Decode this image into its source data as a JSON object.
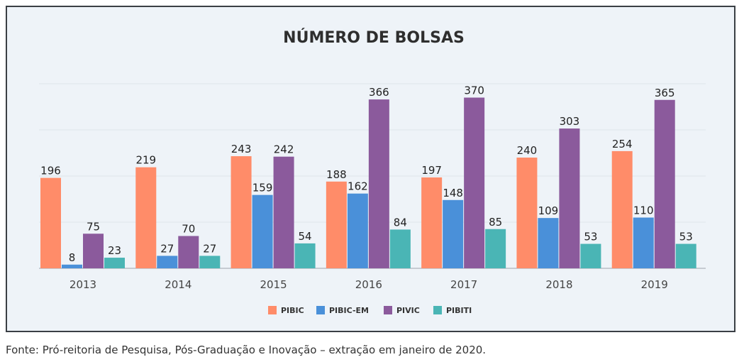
{
  "chart_data": {
    "type": "bar",
    "title": "NÚMERO DE BOLSAS",
    "categories": [
      "2013",
      "2014",
      "2015",
      "2016",
      "2017",
      "2018",
      "2019"
    ],
    "series": [
      {
        "name": "PIBIC",
        "color": "#ff8c69",
        "values": [
          196,
          219,
          243,
          188,
          197,
          240,
          254
        ]
      },
      {
        "name": "PIBIC-EM",
        "color": "#4a90d9",
        "values": [
          8,
          27,
          159,
          162,
          148,
          109,
          110
        ]
      },
      {
        "name": "PIVIC",
        "color": "#8b5a9c",
        "values": [
          75,
          70,
          242,
          366,
          370,
          303,
          365
        ]
      },
      {
        "name": "PIBITI",
        "color": "#4ab5b5",
        "values": [
          23,
          27,
          54,
          84,
          85,
          53,
          53
        ]
      }
    ],
    "ylim": [
      0,
      400
    ],
    "grid": true,
    "legend": "bottom"
  },
  "source": "Fonte: Pró-reitoria de Pesquisa, Pós-Graduação e Inovação – extração em janeiro de 2020."
}
